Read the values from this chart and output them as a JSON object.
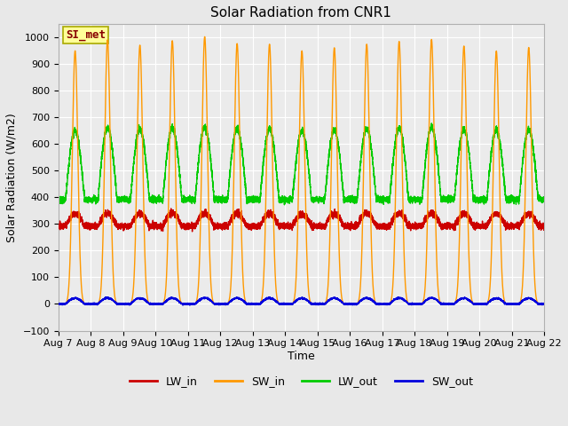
{
  "title": "Solar Radiation from CNR1",
  "xlabel": "Time",
  "ylabel": "Solar Radiation (W/m2)",
  "ylim": [
    -100,
    1050
  ],
  "x_tick_labels": [
    "Aug 7",
    "Aug 8",
    "Aug 9",
    "Aug 10",
    "Aug 11",
    "Aug 12",
    "Aug 13",
    "Aug 14",
    "Aug 15",
    "Aug 16",
    "Aug 17",
    "Aug 18",
    "Aug 19",
    "Aug 20",
    "Aug 21",
    "Aug 22"
  ],
  "fig_bg_color": "#e8e8e8",
  "plot_bg_color": "#ebebeb",
  "grid_color": "#ffffff",
  "series": {
    "LW_in": {
      "color": "#cc0000"
    },
    "SW_in": {
      "color": "#ff9900"
    },
    "LW_out": {
      "color": "#00cc00"
    },
    "SW_out": {
      "color": "#0000dd"
    }
  },
  "annotation": {
    "text": "SI_met",
    "color": "#880000",
    "bg": "#ffff99",
    "edge": "#aaaa00"
  },
  "num_days": 15,
  "pts_per_day": 480,
  "SW_in_peak": 975,
  "SW_in_rise": 5.5,
  "SW_in_set": 19.5,
  "SW_in_sharpness": 6.0,
  "LW_in_base": 292,
  "LW_in_bump": 48,
  "LW_in_noise": 6,
  "LW_out_base": 392,
  "LW_out_bump": 265,
  "LW_out_noise": 6,
  "SW_out_peak": 22,
  "SW_out_noise": 1.5,
  "title_fontsize": 11,
  "label_fontsize": 9,
  "tick_fontsize": 8,
  "annot_fontsize": 9,
  "legend_fontsize": 9,
  "linewidth": 1.0
}
